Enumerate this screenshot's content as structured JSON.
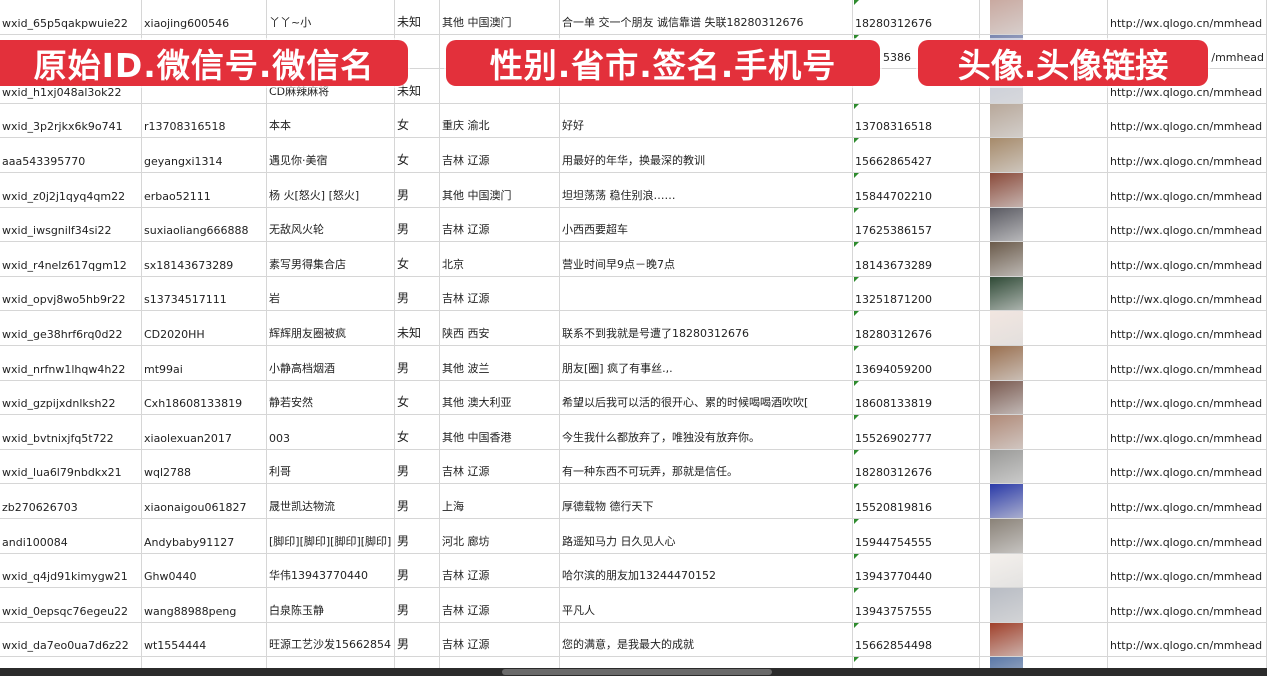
{
  "overlay_labels": {
    "id_wechat": "原始ID.微信号.微信名",
    "profile": "性别.省市.签名.手机号",
    "avatar": "头像.头像链接"
  },
  "colors": {
    "overlay": "#e3303b",
    "grid": "#d6d6d6",
    "cell_marker": "#2e8b2e"
  },
  "rows": [
    {
      "id": "wxid_65p5qakpwuie22",
      "wechat": "xiaojing600546",
      "name": "丫丫~小",
      "gender": "未知",
      "region": "其他 中国澳门",
      "signature": "合一单 交一个朋友 诚信靠谱 失联18280312676",
      "phone": "18280312676",
      "avatar_color": "#c9a9a0",
      "url": "http://wx.qlogo.cn/mmhead"
    },
    {
      "id": "",
      "wechat": "",
      "name": "",
      "gender": "",
      "region": "",
      "signature": "",
      "phone": "5386",
      "avatar_color": "#7a86b0",
      "url": "/mmhead"
    },
    {
      "id": "wxid_h1xj048al3ok22",
      "wechat": "",
      "name": "CD麻辣麻将",
      "gender": "未知",
      "region": "",
      "signature": "",
      "phone": "",
      "avatar_color": "#c8ccd8",
      "url": "http://wx.qlogo.cn/mmhead"
    },
    {
      "id": "wxid_3p2rjkx6k9o741",
      "wechat": "r13708316518",
      "name": "本本",
      "gender": "女",
      "region": "重庆 渝北",
      "signature": "好好",
      "phone": "13708316518",
      "avatar_color": "#b8a89a",
      "url": "http://wx.qlogo.cn/mmhead"
    },
    {
      "id": "aaa543395770",
      "wechat": "geyangxi1314",
      "name": "遇见你·美宿",
      "gender": "女",
      "region": "吉林 辽源",
      "signature": "用最好的年华，换最深的教训",
      "phone": "15662865427",
      "avatar_color": "#a68a6a",
      "url": "http://wx.qlogo.cn/mmhead"
    },
    {
      "id": "wxid_z0j2j1qyq4qm22",
      "wechat": "erbao52111",
      "name": "杨 火[怒火] [怒火]",
      "gender": "男",
      "region": "其他 中国澳门",
      "signature": "坦坦荡荡 稳住别浪……",
      "phone": "15844702210",
      "avatar_color": "#8a4a3a",
      "url": "http://wx.qlogo.cn/mmhead"
    },
    {
      "id": "wxid_iwsgnilf34si22",
      "wechat": "suxiaoliang666888",
      "name": "无敌风火轮",
      "gender": "男",
      "region": "吉林 辽源",
      "signature": "小西西要超车",
      "phone": "17625386157",
      "avatar_color": "#5a5a62",
      "url": "http://wx.qlogo.cn/mmhead"
    },
    {
      "id": "wxid_r4nelz617qgm12",
      "wechat": "sx18143673289",
      "name": "素写男得集合店",
      "gender": "女",
      "region": "北京",
      "signature": "营业时间早9点－晚7点",
      "phone": "18143673289",
      "avatar_color": "#6a5a4a",
      "url": "http://wx.qlogo.cn/mmhead"
    },
    {
      "id": "wxid_opvj8wo5hb9r22",
      "wechat": "s13734517111",
      "name": "岩",
      "gender": "男",
      "region": "吉林 辽源",
      "signature": "",
      "phone": "13251871200",
      "avatar_color": "#2f4a36",
      "url": "http://wx.qlogo.cn/mmhead"
    },
    {
      "id": "wxid_ge38hrf6rq0d22",
      "wechat": "CD2020HH",
      "name": "辉辉朋友圈被疯",
      "gender": "未知",
      "region": "陕西 西安",
      "signature": "联系不到我就是号遭了18280312676",
      "phone": "18280312676",
      "avatar_color": "#f2e6e0",
      "url": "http://wx.qlogo.cn/mmhead"
    },
    {
      "id": "wxid_nrfnw1lhqw4h22",
      "wechat": "mt99ai",
      "name": "小静高档烟酒",
      "gender": "男",
      "region": "其他 波兰",
      "signature": "朋友[圈] 疯了有事丝.,.",
      "phone": "13694059200",
      "avatar_color": "#9a7050",
      "url": "http://wx.qlogo.cn/mmhead"
    },
    {
      "id": "wxid_gzpijxdnlksh22",
      "wechat": "Cxh18608133819",
      "name": "静若安然",
      "gender": "女",
      "region": "其他 澳大利亚",
      "signature": "希望以后我可以活的很开心、累的时候喝喝酒吹吹[",
      "phone": "18608133819",
      "avatar_color": "#7a5a50",
      "url": "http://wx.qlogo.cn/mmhead"
    },
    {
      "id": "wxid_bvtnixjfq5t722",
      "wechat": "xiaolexuan2017",
      "name": "003",
      "gender": "女",
      "region": "其他 中国香港",
      "signature": "今生我什么都放弃了，唯独没有放弃你。",
      "phone": "15526902777",
      "avatar_color": "#b08a78",
      "url": "http://wx.qlogo.cn/mmhead"
    },
    {
      "id": "wxid_lua6l79nbdkx21",
      "wechat": "wql2788",
      "name": "利哥",
      "gender": "男",
      "region": "吉林 辽源",
      "signature": "有一种东西不可玩弄，那就是信任。",
      "phone": "18280312676",
      "avatar_color": "#9a9a98",
      "url": "http://wx.qlogo.cn/mmhead"
    },
    {
      "id": "zb270626703",
      "wechat": "xiaonaigou061827",
      "name": "晟世凯达物流",
      "gender": "男",
      "region": "上海",
      "signature": "厚德载物 德行天下",
      "phone": "15520819816",
      "avatar_color": "#2a3aa8",
      "url": "http://wx.qlogo.cn/mmhead"
    },
    {
      "id": "andi100084",
      "wechat": "Andybaby91127",
      "name": "[脚印][脚印][脚印][脚印]",
      "gender": "男",
      "region": "河北 廊坊",
      "signature": "路遥知马力 日久见人心",
      "phone": "15944754555",
      "avatar_color": "#8a8278",
      "url": "http://wx.qlogo.cn/mmhead"
    },
    {
      "id": "wxid_q4jd91kimygw21",
      "wechat": "Ghw0440",
      "name": "华伟13943770440",
      "gender": "男",
      "region": "吉林 辽源",
      "signature": "哈尔滨的朋友加13244470152",
      "phone": "13943770440",
      "avatar_color": "#f4f0ec",
      "url": "http://wx.qlogo.cn/mmhead"
    },
    {
      "id": "wxid_0epsqc76egeu22",
      "wechat": "wang88988peng",
      "name": "白泉陈玉静",
      "gender": "男",
      "region": "吉林 辽源",
      "signature": "平凡人",
      "phone": "13943757555",
      "avatar_color": "#b8bcc4",
      "url": "http://wx.qlogo.cn/mmhead"
    },
    {
      "id": "wxid_da7eo0ua7d6z22",
      "wechat": "wt1554444",
      "name": "旺源工艺沙发15662854",
      "gender": "男",
      "region": "吉林 辽源",
      "signature": "您的满意，是我最大的成就",
      "phone": "15662854498",
      "avatar_color": "#a0402a",
      "url": "http://wx.qlogo.cn/mmhead"
    },
    {
      "id": "",
      "wechat": "",
      "name": "",
      "gender": "",
      "region": "",
      "signature": "",
      "phone": "",
      "avatar_color": "#5a78a8",
      "url": ""
    }
  ]
}
